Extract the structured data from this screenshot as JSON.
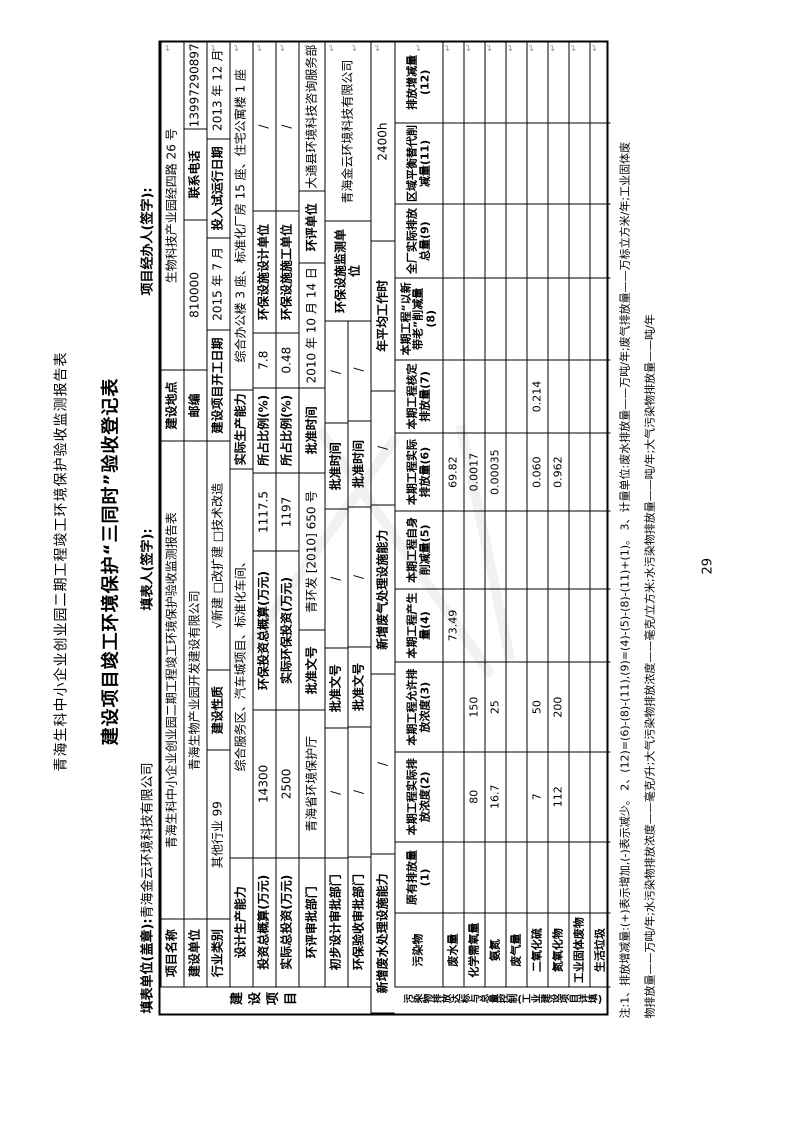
{
  "page": {
    "doc_header": "青海生科中小企业创业园二期工程竣工环境保护验收监测报告表",
    "title": "建设项目竣工环境保护“三同时”验收登记表",
    "form_unit_label": "填表单位(盖章):",
    "form_unit_value": "青海金云环境科技有限公司",
    "form_person_label": "填表人(签字):",
    "handler_label": "项目经办人(签字):",
    "page_number": "29",
    "return_mark": "↵"
  },
  "section1": {
    "side_label": "建设项目",
    "r1": {
      "l1": "项目名称",
      "v1": "青海生科中小企业创业园二期工程竣工环境保护验收监测报告表",
      "l2": "建设地点",
      "v2": "生物科技产业园经四路 26 号"
    },
    "r2": {
      "l1": "建设单位",
      "v1": "青海生物产业园开发建设有限公司",
      "l2": "邮编",
      "v2": "810000",
      "l3": "联系电话",
      "v3": "13997290897"
    },
    "r3": {
      "l1": "行业类别",
      "v1": "其他行业 99",
      "l2": "建设性质",
      "v2": "√新建  □改扩建  □技术改造",
      "l3": "建设项目开工日期",
      "v3": "2015 年 7 月",
      "l4": "投入试运行日期",
      "v4": "2013 年 12 月"
    },
    "r4": {
      "l1": "设计生产能力",
      "v1": "综合服务区、汽车城项目、标准化车间、",
      "l2": "实际生产能力",
      "v2": "综合办公楼 3 座、标准化厂房 15 座、住宅公寓楼 1 座"
    },
    "r5": {
      "l1": "投资总概算(万元)",
      "v1": "14300",
      "l2": "环保投资总概算(万元)",
      "v2": "1117.5",
      "l3": "所占比例(%)",
      "v3": "7.8",
      "l4": "环保设施设计单位",
      "v4": "/"
    },
    "r6": {
      "l1": "实际总投资(万元)",
      "v1": "2500",
      "l2": "实际环保投资(万元)",
      "v2": "1197",
      "l3": "所占比例(%)",
      "v3": "0.48",
      "l4": "环保设施施工单位",
      "v4": "/"
    },
    "r7": {
      "l1": "环评审批部门",
      "v1": "青海省环境保护厅",
      "l2": "批准文号",
      "v2": "青环发 [2010] 650 号",
      "l3": "批准时间",
      "v3": "2010 年 10 月 14 日",
      "l4": "环评单位",
      "v4": "大通县环境科技咨询服务部"
    },
    "r8": {
      "l1": "初步设计审批部门",
      "v1": "/",
      "l2": "批准文号",
      "v2": "/",
      "l3": "批准时间",
      "v3": "/",
      "l4": "环保设施监测单位",
      "v4": "青海金云环境科技有限公司"
    },
    "r9": {
      "l1": "环保验收审批部门",
      "v1": "/",
      "l2": "批准文号",
      "v2": "/",
      "l3": "批准时间",
      "v3": "/"
    },
    "r10": {
      "l1": "新增废水处理设施能力",
      "v1": "/",
      "l2": "新增废气处理设施能力",
      "v2": "/",
      "l3": "年平均工作时",
      "v3": "2400h"
    }
  },
  "pollutant": {
    "side_label_line1": "污染物排放达标与总量控制",
    "side_label_line2": "(工业建设项目详填)",
    "headers": [
      "污染物",
      "原有排放量(1)",
      "本期工程实际排放浓度(2)",
      "本期工程允许排放浓度(3)",
      "本期工程产生量(4)",
      "本期工程自身削减量(5)",
      "本期工程实际排放量(6)",
      "本期工程核定排放量(7)",
      "本期工程“以新带老”削减量(8)",
      "全厂实际排放总量(9)",
      "区域平衡替代削减量(11)",
      "排放增减量(12)"
    ],
    "rows": [
      {
        "name": "废水量",
        "values": [
          "",
          "",
          "",
          "73.49",
          "",
          "69.82",
          "",
          "",
          "",
          "",
          ""
        ]
      },
      {
        "name": "化学需氧量",
        "values": [
          "",
          "80",
          "150",
          "",
          "",
          "0.0017",
          "",
          "",
          "",
          "",
          ""
        ]
      },
      {
        "name": "氨氮",
        "values": [
          "",
          "16.7",
          "25",
          "",
          "",
          "0.00035",
          "",
          "",
          "",
          "",
          ""
        ]
      },
      {
        "name": "废气量",
        "values": [
          "",
          "",
          "",
          "",
          "",
          "",
          "",
          "",
          "",
          "",
          ""
        ]
      },
      {
        "name": "二氧化硫",
        "values": [
          "",
          "7",
          "50",
          "",
          "",
          "0.060",
          "0.214",
          "",
          "",
          "",
          ""
        ]
      },
      {
        "name": "氮氧化物",
        "values": [
          "",
          "112",
          "200",
          "",
          "",
          "0.962",
          "",
          "",
          "",
          "",
          ""
        ]
      },
      {
        "name": "工业固体废物",
        "values": [
          "",
          "",
          "",
          "",
          "",
          "",
          "",
          "",
          "",
          "",
          ""
        ]
      },
      {
        "name": "生活垃圾",
        "values": [
          "",
          "",
          "",
          "",
          "",
          "",
          "",
          "",
          "",
          "",
          ""
        ]
      }
    ]
  },
  "notes": {
    "line1": "注:1、排放增减量:(+)表示增加,(-)表示减少。  2、(12)=(6)-(8)-(11),(9)=(4)-(5)-(8)-(11)+(1)。  3、计量单位:废水排放量——万吨/年;废气排放量——万标立方米/年;工业固体废",
    "line2": "物排放量——万吨/年;水污染物排放浓度——毫克/升;大气污染物排放浓度——毫克/立方米;水污染物排放量——吨/年;大气污染物排放量——吨/年"
  }
}
